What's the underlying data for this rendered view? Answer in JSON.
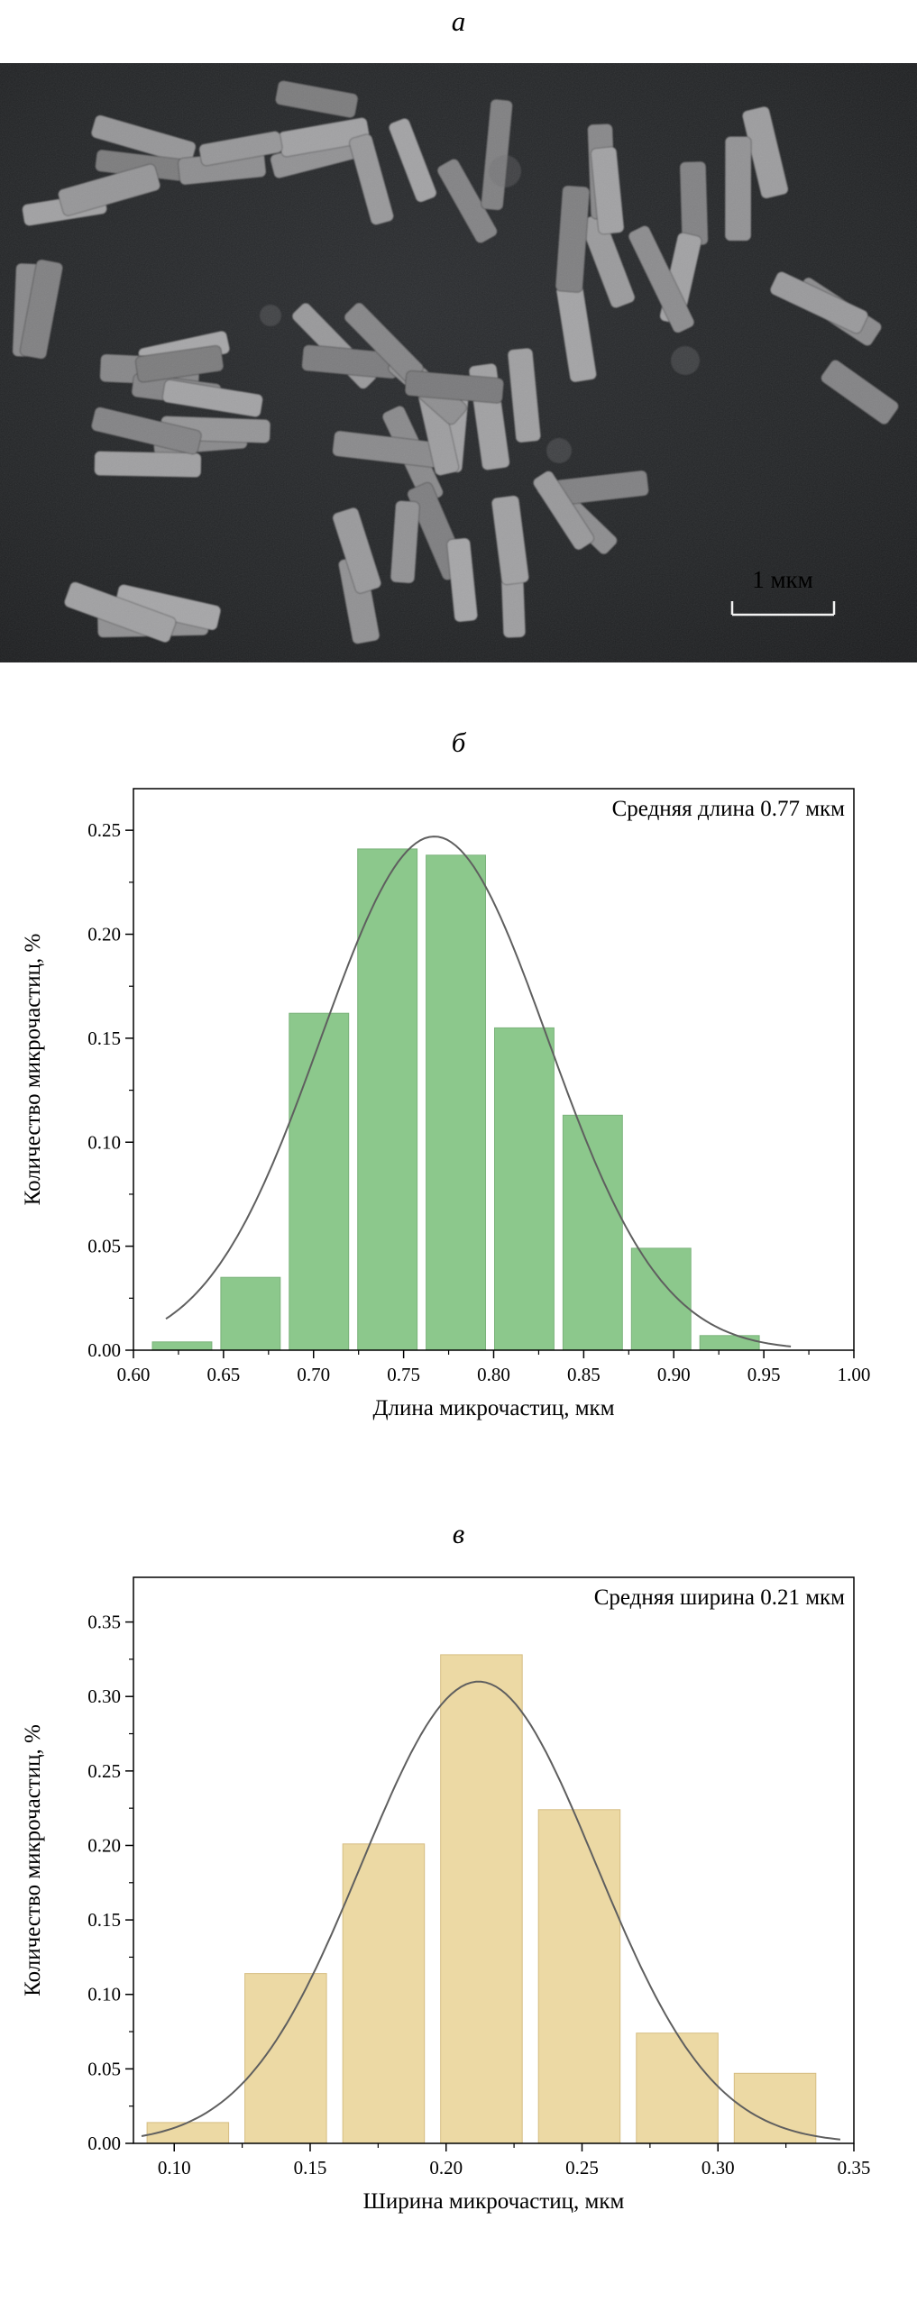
{
  "figure": {
    "panels": [
      {
        "id": "a",
        "label": "а"
      },
      {
        "id": "b",
        "label": "б"
      },
      {
        "id": "v",
        "label": "в"
      }
    ],
    "micrograph": {
      "scale_bar_label": "1 мкм",
      "background_color": "#202224",
      "rod_color": "#97999b"
    }
  },
  "chart_data": [
    {
      "id": "length-histogram",
      "type": "bar",
      "panel": "б",
      "annotation": "Средняя длина 0.77 мкм",
      "xlabel": "Длина микрочастиц, мкм",
      "ylabel": "Количество микрочастиц, %",
      "xlim": [
        0.6,
        1.0
      ],
      "ylim": [
        0,
        0.27
      ],
      "xticks": [
        0.6,
        0.65,
        0.7,
        0.75,
        0.8,
        0.85,
        0.9,
        0.95,
        1.0
      ],
      "yticks": [
        0.0,
        0.05,
        0.1,
        0.15,
        0.2,
        0.25
      ],
      "bar_width": 0.033,
      "bars": [
        {
          "x": 0.627,
          "y": 0.004
        },
        {
          "x": 0.665,
          "y": 0.035
        },
        {
          "x": 0.703,
          "y": 0.162
        },
        {
          "x": 0.741,
          "y": 0.241
        },
        {
          "x": 0.779,
          "y": 0.238
        },
        {
          "x": 0.817,
          "y": 0.155
        },
        {
          "x": 0.855,
          "y": 0.113
        },
        {
          "x": 0.893,
          "y": 0.049
        },
        {
          "x": 0.931,
          "y": 0.007
        }
      ],
      "fit_curve": {
        "type": "gaussian",
        "mean": 0.767,
        "sigma": 0.063,
        "amplitude": 0.247,
        "range": [
          0.618,
          0.965
        ]
      },
      "bar_color": "#8cc88c",
      "bar_edge_color": "#7ab27a",
      "curve_color": "#5f5f5f",
      "grid": false,
      "legend": "none"
    },
    {
      "id": "width-histogram",
      "type": "bar",
      "panel": "в",
      "annotation": "Средняя ширина 0.21 мкм",
      "xlabel": "Ширина микрочастиц, мкм",
      "ylabel": "Количество микрочастиц, %",
      "xlim": [
        0.085,
        0.35
      ],
      "ylim": [
        0,
        0.38
      ],
      "xticks": [
        0.1,
        0.15,
        0.2,
        0.25,
        0.3,
        0.35
      ],
      "yticks": [
        0.0,
        0.05,
        0.1,
        0.15,
        0.2,
        0.25,
        0.3,
        0.35
      ],
      "bar_width": 0.03,
      "bars": [
        {
          "x": 0.105,
          "y": 0.014
        },
        {
          "x": 0.141,
          "y": 0.114
        },
        {
          "x": 0.177,
          "y": 0.201
        },
        {
          "x": 0.213,
          "y": 0.328
        },
        {
          "x": 0.249,
          "y": 0.224
        },
        {
          "x": 0.285,
          "y": 0.074
        },
        {
          "x": 0.321,
          "y": 0.047
        }
      ],
      "fit_curve": {
        "type": "gaussian",
        "mean": 0.212,
        "sigma": 0.043,
        "amplitude": 0.31,
        "range": [
          0.088,
          0.345
        ]
      },
      "bar_color": "#ecd9a4",
      "bar_edge_color": "#d6bd82",
      "curve_color": "#5f5f5f",
      "grid": false,
      "legend": "none"
    }
  ]
}
